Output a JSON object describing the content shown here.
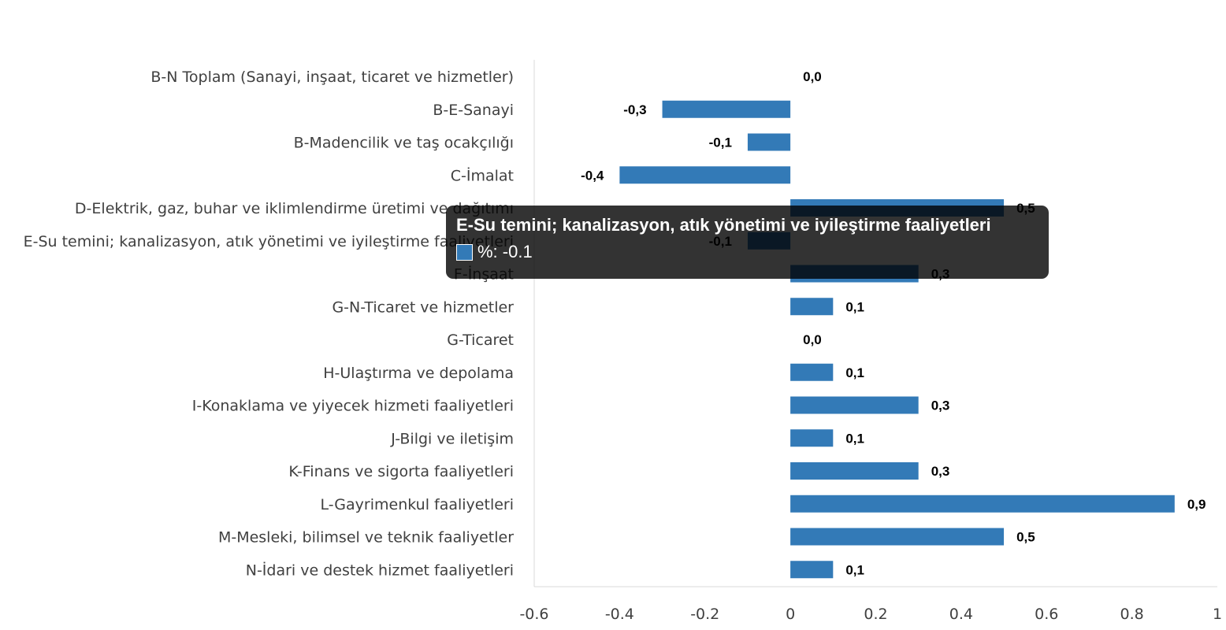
{
  "chart_data": {
    "type": "bar",
    "orientation": "horizontal",
    "categories": [
      "B-N Toplam (Sanayi, inşaat, ticaret ve hizmetler)",
      "B-E-Sanayi",
      "B-Madencilik ve taş ocakçılığı",
      "C-İmalat",
      "D-Elektrik, gaz, buhar ve iklimlendirme üretimi ve dağıtımı",
      "E-Su temini; kanalizasyon, atık yönetimi ve iyileştirme faaliyetleri",
      "F-İnşaat",
      "G-N-Ticaret ve hizmetler",
      "G-Ticaret",
      "H-Ulaştırma ve depolama",
      "I-Konaklama ve yiyecek hizmeti faaliyetleri",
      "J-Bilgi ve iletişim",
      "K-Finans ve sigorta faaliyetleri",
      "L-Gayrimenkul faaliyetleri",
      "M-Mesleki, bilimsel ve teknik faaliyetler",
      "N-İdari ve destek hizmet faaliyetleri"
    ],
    "series": [
      {
        "name": "%",
        "values": [
          0.0,
          -0.3,
          -0.1,
          -0.4,
          0.5,
          -0.1,
          0.3,
          0.1,
          0.0,
          0.1,
          0.3,
          0.1,
          0.3,
          0.9,
          0.5,
          0.1
        ]
      }
    ],
    "data_labels": [
      "0,0",
      "-0,3",
      "-0,1",
      "-0,4",
      "0,5",
      "-0,1",
      "0,3",
      "0,1",
      "0,0",
      "0,1",
      "0,3",
      "0,1",
      "0,3",
      "0,9",
      "0,5",
      "0,1"
    ],
    "xlim": [
      -0.6,
      1
    ],
    "xticks": [
      "-0.6",
      "-0.4",
      "-0.2",
      "0",
      "0.2",
      "0.4",
      "0.6",
      "0.8",
      "1"
    ],
    "grid": false,
    "color": "#337ab7"
  },
  "tooltip": {
    "title": "E-Su temini; kanalizasyon, atık yönetimi ve iyileştirme faaliyetleri",
    "value_text": "%: -0.1"
  }
}
